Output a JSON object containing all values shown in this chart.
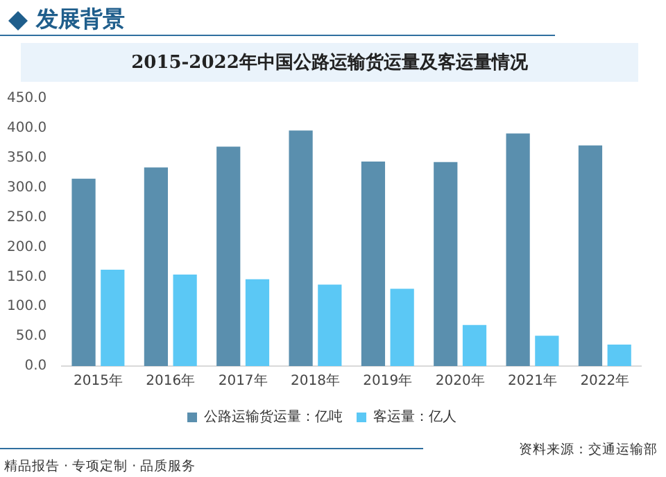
{
  "chart_data": {
    "type": "bar",
    "title": "2015-2022年中国公路运输货运量及客运量情况",
    "subtitle": "发展背景",
    "categories": [
      "2015年",
      "2016年",
      "2017年",
      "2018年",
      "2019年",
      "2020年",
      "2021年",
      "2022年"
    ],
    "series": [
      {
        "name": "公路运输货运量：亿吨",
        "color": "#5a8fae",
        "values": [
          315,
          334,
          369,
          396,
          344,
          343,
          391,
          371
        ]
      },
      {
        "name": "客运量：亿人",
        "color": "#5bc8f5",
        "values": [
          162,
          154,
          146,
          137,
          130,
          69,
          51,
          36
        ]
      }
    ],
    "ylim": [
      0,
      450
    ],
    "yticks": [
      {
        "value": 0,
        "label": "0.0"
      },
      {
        "value": 50,
        "label": "50.0"
      },
      {
        "value": 100,
        "label": "100.0"
      },
      {
        "value": 150,
        "label": "150.0"
      },
      {
        "value": 200,
        "label": "200.0"
      },
      {
        "value": 250,
        "label": "250.0"
      },
      {
        "value": 300,
        "label": "300.0"
      },
      {
        "value": 350,
        "label": "350.0"
      },
      {
        "value": 400,
        "label": "400.0"
      },
      {
        "value": 450,
        "label": "450.0"
      }
    ],
    "grid": false,
    "legend": "bottom",
    "annotations": [
      "资料来源：交通运输部",
      "精品报告 · 专项定制 · 品质服务"
    ]
  }
}
